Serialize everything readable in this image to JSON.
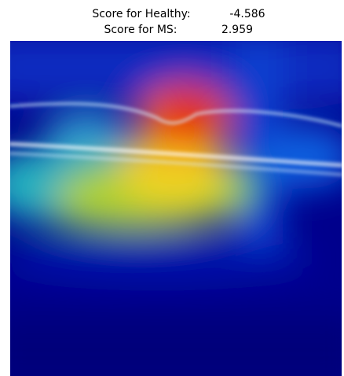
{
  "header": {
    "healthy_label": "Score for Healthy:",
    "healthy_score": -4.586,
    "ms_label": "Score for MS:",
    "ms_score": 2.959
  }
}
